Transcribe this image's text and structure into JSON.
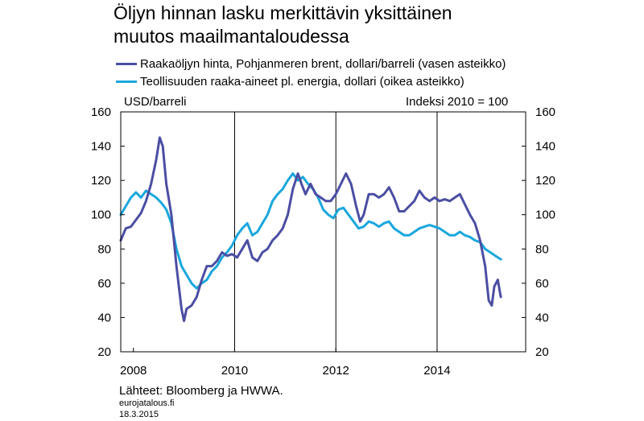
{
  "chart_data": {
    "type": "line",
    "title": "Öljyn hinnan lasku merkittävin yksittäinen muutos maailmantaloudessa",
    "title_lines": [
      "Öljyn hinnan lasku merkittävin yksittäinen",
      "muutos maailmantaloudessa"
    ],
    "left_axis_label": "USD/barreli",
    "right_axis_label": "Indeksi 2010 = 100",
    "ylim_left": [
      20,
      160
    ],
    "ylim_right": [
      20,
      160
    ],
    "yticks": [
      "20",
      "40",
      "60",
      "80",
      "100",
      "120",
      "140",
      "160"
    ],
    "xlim": [
      2007.75,
      2015.75
    ],
    "xticks": [
      {
        "value": 2008,
        "label": "2008"
      },
      {
        "value": 2010,
        "label": "2010"
      },
      {
        "value": 2012,
        "label": "2012"
      },
      {
        "value": 2014,
        "label": "2014"
      }
    ],
    "vertical_gridlines": [
      2010,
      2012,
      2014
    ],
    "series": [
      {
        "name": "Raakaöljyn hinta, Pohjanmeren brent, dollari/barreli (vasen asteikko)",
        "color": "#4b4ea3",
        "axis": "left",
        "points": [
          [
            2007.75,
            85
          ],
          [
            2007.85,
            92
          ],
          [
            2007.95,
            93
          ],
          [
            2008.05,
            97
          ],
          [
            2008.15,
            101
          ],
          [
            2008.25,
            108
          ],
          [
            2008.35,
            118
          ],
          [
            2008.45,
            132
          ],
          [
            2008.52,
            145
          ],
          [
            2008.58,
            140
          ],
          [
            2008.65,
            118
          ],
          [
            2008.75,
            100
          ],
          [
            2008.85,
            70
          ],
          [
            2008.95,
            45
          ],
          [
            2009.0,
            38
          ],
          [
            2009.05,
            45
          ],
          [
            2009.15,
            47
          ],
          [
            2009.25,
            52
          ],
          [
            2009.35,
            62
          ],
          [
            2009.45,
            70
          ],
          [
            2009.55,
            70
          ],
          [
            2009.65,
            73
          ],
          [
            2009.75,
            78
          ],
          [
            2009.85,
            76
          ],
          [
            2009.95,
            77
          ],
          [
            2010.05,
            75
          ],
          [
            2010.15,
            80
          ],
          [
            2010.25,
            85
          ],
          [
            2010.35,
            75
          ],
          [
            2010.45,
            73
          ],
          [
            2010.55,
            78
          ],
          [
            2010.65,
            80
          ],
          [
            2010.75,
            85
          ],
          [
            2010.85,
            88
          ],
          [
            2010.95,
            92
          ],
          [
            2011.05,
            100
          ],
          [
            2011.15,
            115
          ],
          [
            2011.25,
            124
          ],
          [
            2011.32,
            118
          ],
          [
            2011.4,
            112
          ],
          [
            2011.5,
            118
          ],
          [
            2011.6,
            112
          ],
          [
            2011.7,
            110
          ],
          [
            2011.8,
            108
          ],
          [
            2011.9,
            108
          ],
          [
            2012.0,
            112
          ],
          [
            2012.1,
            118
          ],
          [
            2012.2,
            124
          ],
          [
            2012.3,
            118
          ],
          [
            2012.4,
            105
          ],
          [
            2012.48,
            96
          ],
          [
            2012.55,
            100
          ],
          [
            2012.65,
            112
          ],
          [
            2012.75,
            112
          ],
          [
            2012.85,
            110
          ],
          [
            2012.95,
            112
          ],
          [
            2013.05,
            116
          ],
          [
            2013.15,
            110
          ],
          [
            2013.25,
            102
          ],
          [
            2013.35,
            102
          ],
          [
            2013.45,
            105
          ],
          [
            2013.55,
            108
          ],
          [
            2013.65,
            114
          ],
          [
            2013.75,
            110
          ],
          [
            2013.85,
            108
          ],
          [
            2013.95,
            110
          ],
          [
            2014.05,
            108
          ],
          [
            2014.15,
            109
          ],
          [
            2014.25,
            108
          ],
          [
            2014.35,
            110
          ],
          [
            2014.45,
            112
          ],
          [
            2014.55,
            106
          ],
          [
            2014.65,
            100
          ],
          [
            2014.75,
            95
          ],
          [
            2014.85,
            85
          ],
          [
            2014.95,
            70
          ],
          [
            2015.02,
            50
          ],
          [
            2015.08,
            47
          ],
          [
            2015.13,
            58
          ],
          [
            2015.2,
            62
          ],
          [
            2015.24,
            55
          ],
          [
            2015.26,
            52
          ]
        ]
      },
      {
        "name": "Teollisuuden raaka-aineet pl. energia, dollari (oikea asteikko)",
        "color": "#1aa7dd",
        "axis": "right",
        "points": [
          [
            2007.75,
            100
          ],
          [
            2007.85,
            105
          ],
          [
            2007.95,
            110
          ],
          [
            2008.05,
            113
          ],
          [
            2008.15,
            110
          ],
          [
            2008.25,
            114
          ],
          [
            2008.35,
            112
          ],
          [
            2008.45,
            110
          ],
          [
            2008.55,
            107
          ],
          [
            2008.65,
            103
          ],
          [
            2008.75,
            95
          ],
          [
            2008.85,
            80
          ],
          [
            2008.95,
            70
          ],
          [
            2009.05,
            65
          ],
          [
            2009.15,
            60
          ],
          [
            2009.25,
            57
          ],
          [
            2009.35,
            60
          ],
          [
            2009.45,
            62
          ],
          [
            2009.55,
            67
          ],
          [
            2009.65,
            70
          ],
          [
            2009.75,
            75
          ],
          [
            2009.85,
            78
          ],
          [
            2009.95,
            82
          ],
          [
            2010.05,
            88
          ],
          [
            2010.15,
            92
          ],
          [
            2010.25,
            95
          ],
          [
            2010.35,
            88
          ],
          [
            2010.45,
            90
          ],
          [
            2010.55,
            95
          ],
          [
            2010.65,
            100
          ],
          [
            2010.75,
            108
          ],
          [
            2010.85,
            112
          ],
          [
            2010.95,
            115
          ],
          [
            2011.05,
            120
          ],
          [
            2011.15,
            124
          ],
          [
            2011.25,
            120
          ],
          [
            2011.35,
            122
          ],
          [
            2011.45,
            118
          ],
          [
            2011.55,
            115
          ],
          [
            2011.65,
            110
          ],
          [
            2011.75,
            103
          ],
          [
            2011.85,
            100
          ],
          [
            2011.95,
            98
          ],
          [
            2012.05,
            103
          ],
          [
            2012.15,
            104
          ],
          [
            2012.25,
            100
          ],
          [
            2012.35,
            96
          ],
          [
            2012.45,
            92
          ],
          [
            2012.55,
            93
          ],
          [
            2012.65,
            96
          ],
          [
            2012.75,
            95
          ],
          [
            2012.85,
            93
          ],
          [
            2012.95,
            95
          ],
          [
            2013.05,
            96
          ],
          [
            2013.15,
            92
          ],
          [
            2013.25,
            90
          ],
          [
            2013.35,
            88
          ],
          [
            2013.45,
            88
          ],
          [
            2013.55,
            90
          ],
          [
            2013.65,
            92
          ],
          [
            2013.75,
            93
          ],
          [
            2013.85,
            94
          ],
          [
            2013.95,
            93
          ],
          [
            2014.05,
            92
          ],
          [
            2014.15,
            90
          ],
          [
            2014.25,
            88
          ],
          [
            2014.35,
            88
          ],
          [
            2014.45,
            90
          ],
          [
            2014.55,
            88
          ],
          [
            2014.65,
            87
          ],
          [
            2014.75,
            85
          ],
          [
            2014.85,
            84
          ],
          [
            2014.95,
            80
          ],
          [
            2015.05,
            78
          ],
          [
            2015.15,
            76
          ],
          [
            2015.26,
            74
          ]
        ]
      }
    ]
  },
  "footer": {
    "source": "Lähteet: Bloomberg ja HWWA.",
    "site": "eurojatalous.fi",
    "date": "18.3.2015"
  },
  "colors": {
    "frame": "#000000",
    "grid": "#000000"
  }
}
